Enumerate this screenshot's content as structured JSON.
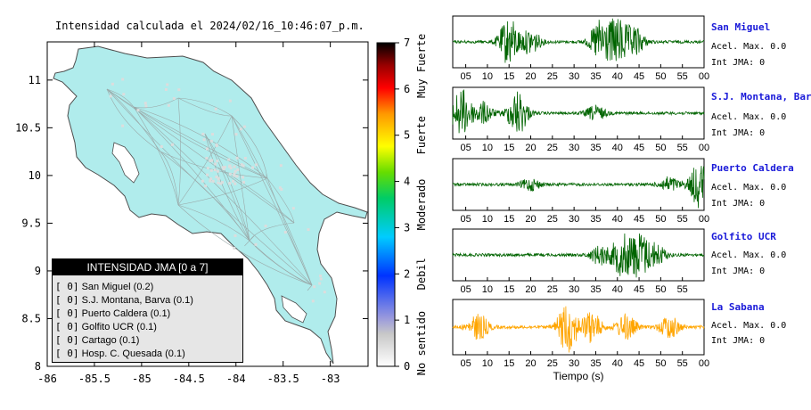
{
  "map": {
    "title": "Intensidad calculada el 2024/02/16_10:46:07_p.m.",
    "xticks": [
      "-86",
      "-85.5",
      "-85",
      "-84.5",
      "-84",
      "-83.5",
      "-83"
    ],
    "yticks": [
      "11",
      "10.5",
      "10",
      "9.5",
      "9",
      "8.5",
      "8"
    ]
  },
  "colorbar": {
    "ticks": [
      "0",
      "1",
      "2",
      "3",
      "4",
      "5",
      "6",
      "7"
    ],
    "labels": [
      "No sentido",
      "Debil",
      "Moderado",
      "Fuerte",
      "Muy Fuerte"
    ]
  },
  "legend": {
    "title": "INTENSIDAD JMA [0 a 7]",
    "items": [
      {
        "code": "[ 0]",
        "label": "San Miguel (0.2)"
      },
      {
        "code": "[ 0]",
        "label": "S.J. Montana, Barva (0.1)"
      },
      {
        "code": "[ 0]",
        "label": "Puerto Caldera (0.1)"
      },
      {
        "code": "[ 0]",
        "label": "Golfito UCR (0.1)"
      },
      {
        "code": "[ 0]",
        "label": "Cartago (0.1)"
      },
      {
        "code": "[ 0]",
        "label": "Hosp. C. Quesada (0.1)"
      }
    ]
  },
  "waveforms": {
    "xlabel": "Tiempo (s)",
    "xticks": [
      "05",
      "10",
      "15",
      "20",
      "25",
      "30",
      "35",
      "40",
      "45",
      "50",
      "55",
      "00"
    ],
    "stations": [
      {
        "name": "San Miguel",
        "acel": "Acel. Max. 0.0",
        "jma": "Int JMA: 0",
        "color": "#006400"
      },
      {
        "name": "S.J. Montana, Barva",
        "acel": "Acel. Max. 0.0",
        "jma": "Int JMA: 0",
        "color": "#006400"
      },
      {
        "name": "Puerto Caldera",
        "acel": "Acel. Max. 0.0",
        "jma": "Int JMA: 0",
        "color": "#006400"
      },
      {
        "name": "Golfito UCR",
        "acel": "Acel. Max. 0.0",
        "jma": "Int JMA: 0",
        "color": "#006400"
      },
      {
        "name": "La Sabana",
        "acel": "Acel. Max. 0.0",
        "jma": "Int JMA: 0",
        "color": "#ffa500"
      }
    ]
  },
  "chart_data": [
    {
      "type": "map",
      "title": "Intensidad calculada el 2024/02/16_10:46:07_p.m.",
      "xlim": [
        -86,
        -82.6
      ],
      "ylim": [
        8,
        11.4
      ],
      "fill_color": "#b0ecec",
      "colorbar": {
        "range": [
          0,
          7
        ],
        "labels": [
          "No sentido",
          "Debil",
          "Moderado",
          "Fuerte",
          "Muy Fuerte"
        ]
      },
      "stations": [
        {
          "name": "San Miguel",
          "intensity": 0.2
        },
        {
          "name": "S.J. Montana, Barva",
          "intensity": 0.1
        },
        {
          "name": "Puerto Caldera",
          "intensity": 0.1
        },
        {
          "name": "Golfito UCR",
          "intensity": 0.1
        },
        {
          "name": "Cartago",
          "intensity": 0.1
        },
        {
          "name": "Hosp. C. Quesada",
          "intensity": 0.1
        }
      ]
    },
    {
      "type": "line",
      "xlabel": "Tiempo (s)",
      "xlim": [
        2,
        60
      ],
      "series": [
        {
          "name": "San Miguel",
          "color": "#006400",
          "bursts": [
            [
              15,
              1.0
            ],
            [
              20,
              0.5
            ],
            [
              36,
              0.9
            ],
            [
              40,
              1.0
            ],
            [
              44,
              0.6
            ]
          ]
        },
        {
          "name": "S.J. Montana, Barva",
          "color": "#006400",
          "bursts": [
            [
              4,
              1.0
            ],
            [
              9,
              0.45
            ],
            [
              17,
              0.95
            ],
            [
              35,
              0.3
            ]
          ]
        },
        {
          "name": "Puerto Caldera",
          "color": "#006400",
          "bursts": [
            [
              20,
              0.25
            ],
            [
              52,
              0.3
            ],
            [
              59,
              1.0
            ]
          ]
        },
        {
          "name": "Golfito UCR",
          "color": "#006400",
          "bursts": [
            [
              36,
              0.4
            ],
            [
              41,
              0.85
            ],
            [
              45,
              1.0
            ],
            [
              49,
              0.45
            ]
          ]
        },
        {
          "name": "La Sabana",
          "color": "#ffa500",
          "bursts": [
            [
              8,
              0.5
            ],
            [
              28.5,
              1.0
            ],
            [
              34,
              0.6
            ],
            [
              42,
              0.5
            ],
            [
              52,
              0.45
            ]
          ]
        }
      ]
    }
  ]
}
